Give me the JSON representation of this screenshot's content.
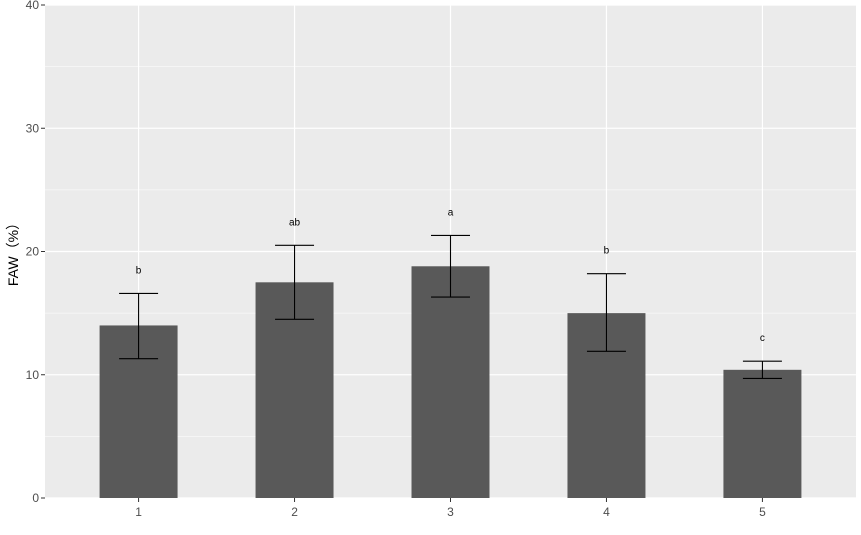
{
  "chart_data": {
    "type": "bar",
    "categories": [
      "1",
      "2",
      "3",
      "4",
      "5"
    ],
    "values": [
      14.0,
      17.5,
      18.8,
      15.0,
      10.4
    ],
    "error_low": [
      11.3,
      14.5,
      16.3,
      11.9,
      9.7
    ],
    "error_high": [
      16.6,
      20.5,
      21.3,
      18.2,
      11.1
    ],
    "significance_labels": [
      "b",
      "ab",
      "a",
      "b",
      "c"
    ],
    "xlabel": "",
    "ylabel": "FAW（%）",
    "ylim": [
      0,
      40
    ],
    "yticks": [
      0,
      10,
      20,
      30,
      40
    ],
    "grid": true,
    "colors": {
      "panel_background": "#ebebeb",
      "grid_major": "#ffffff",
      "bar_fill": "#595959",
      "error_bar": "#000000"
    }
  }
}
